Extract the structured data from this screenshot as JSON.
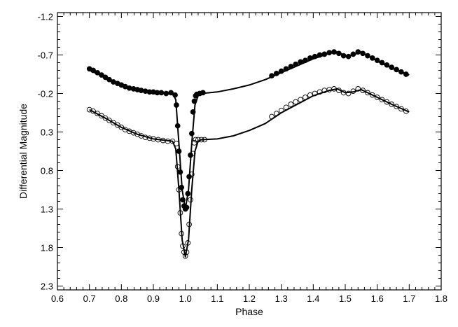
{
  "chart_data": {
    "type": "scatter",
    "title": "",
    "xlabel": "Phase",
    "ylabel": "Differential Magnitude",
    "xlim": [
      0.6,
      1.8
    ],
    "ylim": [
      2.35,
      -1.25
    ],
    "y_inverted": true,
    "grid": false,
    "xticks": [
      0.6,
      0.7,
      0.8,
      0.9,
      1.0,
      1.1,
      1.2,
      1.3,
      1.4,
      1.5,
      1.6,
      1.7,
      1.8
    ],
    "xtick_labels": [
      "0.6",
      "0.7",
      "0.8",
      "0.9",
      "1.0",
      "1.1",
      "1.2",
      "1.3",
      "1.4",
      "1.5",
      "1.6",
      "1.7",
      "1.8"
    ],
    "yticks": [
      -1.2,
      -0.7,
      -0.2,
      0.3,
      0.8,
      1.3,
      1.8,
      2.3
    ],
    "ytick_labels": [
      "-1.2",
      "-0.7",
      "-0.2",
      "0.3",
      "0.8",
      "1.3",
      "1.8",
      "2.3"
    ],
    "series": [
      {
        "marker": "filled-circle",
        "x": [
          0.7,
          0.712,
          0.725,
          0.738,
          0.75,
          0.762,
          0.775,
          0.788,
          0.8,
          0.812,
          0.825,
          0.838,
          0.85,
          0.862,
          0.875,
          0.888,
          0.9,
          0.912,
          0.925,
          0.94,
          0.955,
          0.968,
          0.972,
          0.976,
          0.98,
          0.984,
          0.988,
          0.992,
          0.996,
          1.0,
          1.004,
          1.008,
          1.012,
          1.016,
          1.02,
          1.024,
          1.028,
          1.032,
          1.036,
          1.045,
          1.055,
          1.27,
          1.285,
          1.3,
          1.315,
          1.33,
          1.345,
          1.36,
          1.375,
          1.39,
          1.405,
          1.42,
          1.435,
          1.45,
          1.465,
          1.48,
          1.495,
          1.51,
          1.525,
          1.54,
          1.555,
          1.57,
          1.585,
          1.6,
          1.615,
          1.63,
          1.645,
          1.66,
          1.675,
          1.69
        ],
        "y": [
          -0.52,
          -0.5,
          -0.47,
          -0.44,
          -0.41,
          -0.38,
          -0.35,
          -0.33,
          -0.31,
          -0.29,
          -0.27,
          -0.26,
          -0.25,
          -0.24,
          -0.23,
          -0.22,
          -0.22,
          -0.21,
          -0.21,
          -0.2,
          -0.21,
          -0.18,
          -0.05,
          0.22,
          0.55,
          0.82,
          1.02,
          1.18,
          1.26,
          1.3,
          1.28,
          1.1,
          0.88,
          0.6,
          0.32,
          0.04,
          -0.1,
          -0.17,
          -0.19,
          -0.2,
          -0.21,
          -0.43,
          -0.46,
          -0.49,
          -0.52,
          -0.55,
          -0.58,
          -0.61,
          -0.63,
          -0.66,
          -0.68,
          -0.7,
          -0.71,
          -0.73,
          -0.74,
          -0.72,
          -0.69,
          -0.68,
          -0.71,
          -0.74,
          -0.72,
          -0.69,
          -0.66,
          -0.63,
          -0.6,
          -0.57,
          -0.54,
          -0.51,
          -0.48,
          -0.45
        ]
      },
      {
        "marker": "open-circle",
        "x": [
          0.7,
          0.712,
          0.725,
          0.738,
          0.75,
          0.762,
          0.775,
          0.788,
          0.8,
          0.812,
          0.825,
          0.838,
          0.85,
          0.862,
          0.875,
          0.888,
          0.9,
          0.915,
          0.93,
          0.945,
          0.96,
          0.972,
          0.976,
          0.98,
          0.984,
          0.988,
          0.992,
          0.996,
          1.0,
          1.004,
          1.008,
          1.012,
          1.016,
          1.02,
          1.024,
          1.028,
          1.032,
          1.04,
          1.05,
          1.06,
          1.27,
          1.285,
          1.3,
          1.315,
          1.33,
          1.345,
          1.36,
          1.375,
          1.39,
          1.405,
          1.42,
          1.435,
          1.45,
          1.465,
          1.48,
          1.495,
          1.51,
          1.525,
          1.54,
          1.555,
          1.57,
          1.585,
          1.6,
          1.615,
          1.63,
          1.645,
          1.66,
          1.675,
          1.69
        ],
        "y": [
          0.01,
          0.03,
          0.06,
          0.09,
          0.12,
          0.15,
          0.18,
          0.21,
          0.24,
          0.27,
          0.29,
          0.31,
          0.33,
          0.35,
          0.37,
          0.38,
          0.39,
          0.4,
          0.41,
          0.42,
          0.42,
          0.45,
          0.75,
          1.05,
          1.35,
          1.62,
          1.78,
          1.86,
          1.91,
          1.86,
          1.74,
          1.5,
          1.18,
          0.85,
          0.58,
          0.44,
          0.4,
          0.4,
          0.4,
          0.4,
          0.1,
          0.06,
          0.02,
          -0.02,
          -0.06,
          -0.09,
          -0.12,
          -0.15,
          -0.18,
          -0.2,
          -0.22,
          -0.24,
          -0.25,
          -0.26,
          -0.24,
          -0.21,
          -0.2,
          -0.23,
          -0.26,
          -0.24,
          -0.21,
          -0.18,
          -0.15,
          -0.12,
          -0.09,
          -0.06,
          -0.03,
          0.0,
          0.03
        ]
      }
    ],
    "fit_curves": [
      {
        "x": [
          0.7,
          0.75,
          0.8,
          0.85,
          0.9,
          0.94,
          0.96,
          0.97,
          0.98,
          0.99,
          1.0,
          1.01,
          1.02,
          1.03,
          1.04,
          1.05,
          1.1,
          1.15,
          1.2,
          1.25,
          1.3,
          1.35,
          1.4,
          1.45,
          1.475,
          1.5,
          1.525,
          1.55,
          1.6,
          1.65,
          1.7
        ],
        "y": [
          -0.5,
          -0.41,
          -0.31,
          -0.25,
          -0.22,
          -0.21,
          -0.2,
          -0.12,
          0.45,
          1.05,
          1.3,
          1.05,
          0.45,
          -0.05,
          -0.17,
          -0.2,
          -0.22,
          -0.26,
          -0.31,
          -0.38,
          -0.47,
          -0.56,
          -0.65,
          -0.72,
          -0.74,
          -0.69,
          -0.7,
          -0.74,
          -0.62,
          -0.52,
          -0.44
        ]
      },
      {
        "x": [
          0.7,
          0.75,
          0.8,
          0.85,
          0.9,
          0.94,
          0.96,
          0.97,
          0.98,
          0.99,
          1.0,
          1.01,
          1.02,
          1.03,
          1.04,
          1.05,
          1.1,
          1.15,
          1.2,
          1.25,
          1.3,
          1.35,
          1.4,
          1.45,
          1.475,
          1.5,
          1.525,
          1.55,
          1.6,
          1.65,
          1.7
        ],
        "y": [
          0.01,
          0.12,
          0.24,
          0.33,
          0.39,
          0.41,
          0.42,
          0.52,
          1.05,
          1.7,
          1.92,
          1.7,
          1.05,
          0.55,
          0.42,
          0.4,
          0.39,
          0.35,
          0.28,
          0.19,
          0.05,
          -0.06,
          -0.17,
          -0.24,
          -0.26,
          -0.21,
          -0.22,
          -0.25,
          -0.15,
          -0.05,
          0.04
        ]
      }
    ]
  }
}
